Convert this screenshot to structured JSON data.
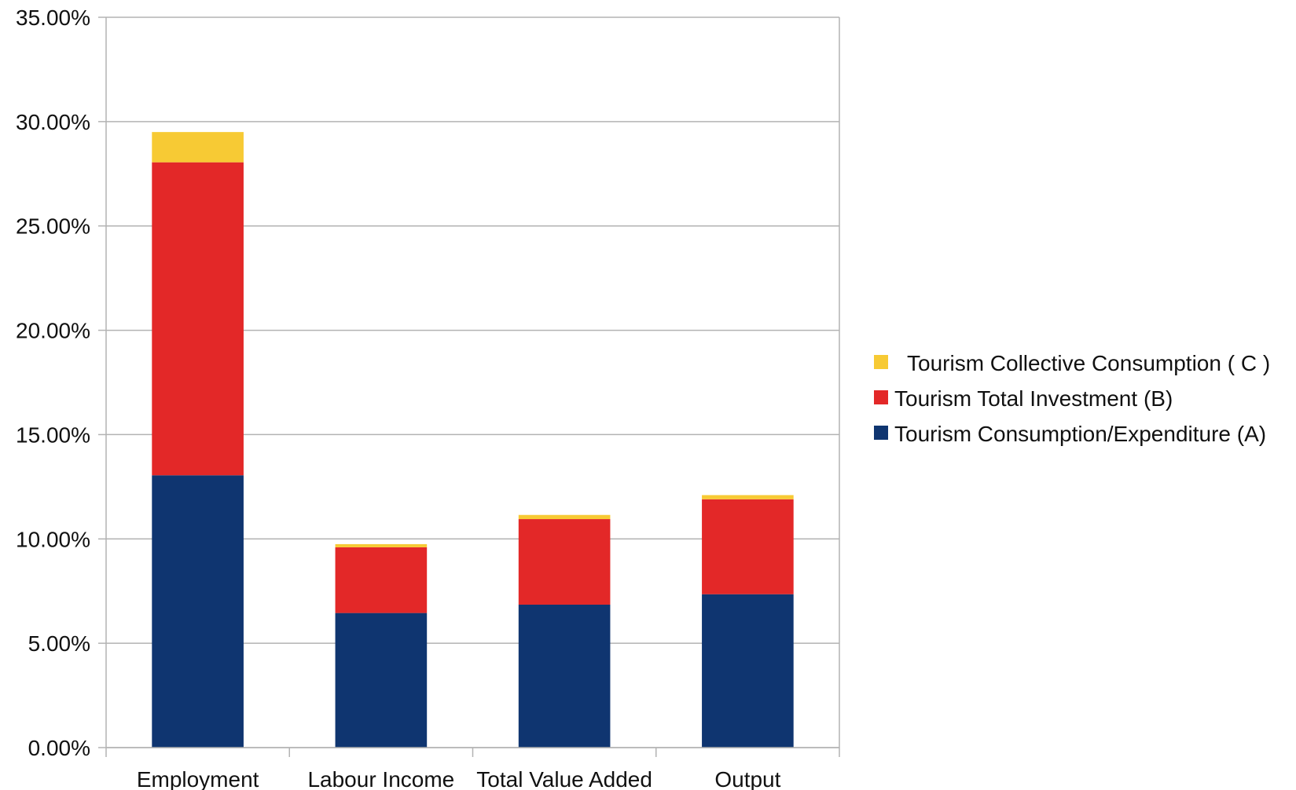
{
  "chart_data": {
    "type": "bar",
    "stacked": true,
    "categories": [
      "Employment",
      "Labour Income",
      "Total Value Added",
      "Output"
    ],
    "series": [
      {
        "name": "Tourism Consumption/Expenditure (A)",
        "color": "#0f3570",
        "values": [
          13.05,
          6.45,
          6.85,
          7.35
        ]
      },
      {
        "name": "Tourism Total Investment (B)",
        "color": "#e32828",
        "values": [
          15.0,
          3.15,
          4.1,
          4.55
        ]
      },
      {
        "name": "Tourism Collective Consumption ( C )",
        "color": "#f7ca34",
        "values": [
          1.45,
          0.15,
          0.2,
          0.2
        ]
      }
    ],
    "legend_order": [
      2,
      1,
      0
    ],
    "ylim": [
      0,
      35
    ],
    "yticks": [
      0,
      5,
      10,
      15,
      20,
      25,
      30,
      35
    ],
    "ytick_labels": [
      "0.00%",
      "5.00%",
      "10.00%",
      "15.00%",
      "20.00%",
      "25.00%",
      "30.00%",
      "35.00%"
    ],
    "title": "",
    "xlabel": "",
    "ylabel": "",
    "grid": true,
    "legend_position": "right"
  }
}
